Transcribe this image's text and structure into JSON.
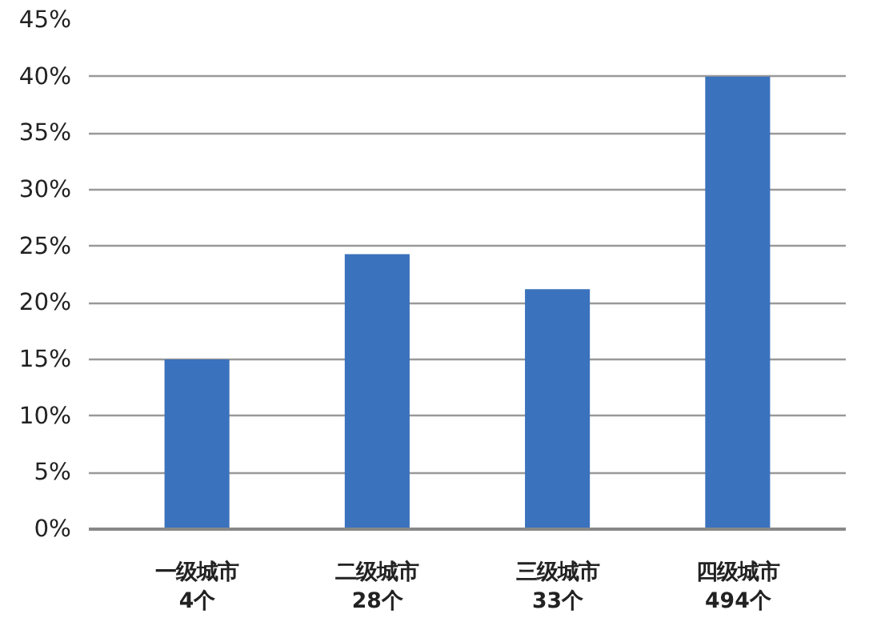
{
  "chart_data": {
    "type": "bar",
    "categories": [
      "一级城市\n4个",
      "二级城市\n28个",
      "三级城市\n33个",
      "四级城市\n494个"
    ],
    "values": [
      15,
      24.3,
      21.2,
      40
    ],
    "color": "#3a72bd",
    "ylim": [
      0,
      45
    ],
    "yticks": [
      {
        "value": 0,
        "label": "0%"
      },
      {
        "value": 5,
        "label": "5%"
      },
      {
        "value": 10,
        "label": "10%"
      },
      {
        "value": 15,
        "label": "15%"
      },
      {
        "value": 20,
        "label": "20%"
      },
      {
        "value": 25,
        "label": "25%"
      },
      {
        "value": 30,
        "label": "30%"
      },
      {
        "value": 35,
        "label": "35%"
      },
      {
        "value": 40,
        "label": "40%"
      },
      {
        "value": 45,
        "label": "45%"
      }
    ],
    "grid": "y"
  }
}
